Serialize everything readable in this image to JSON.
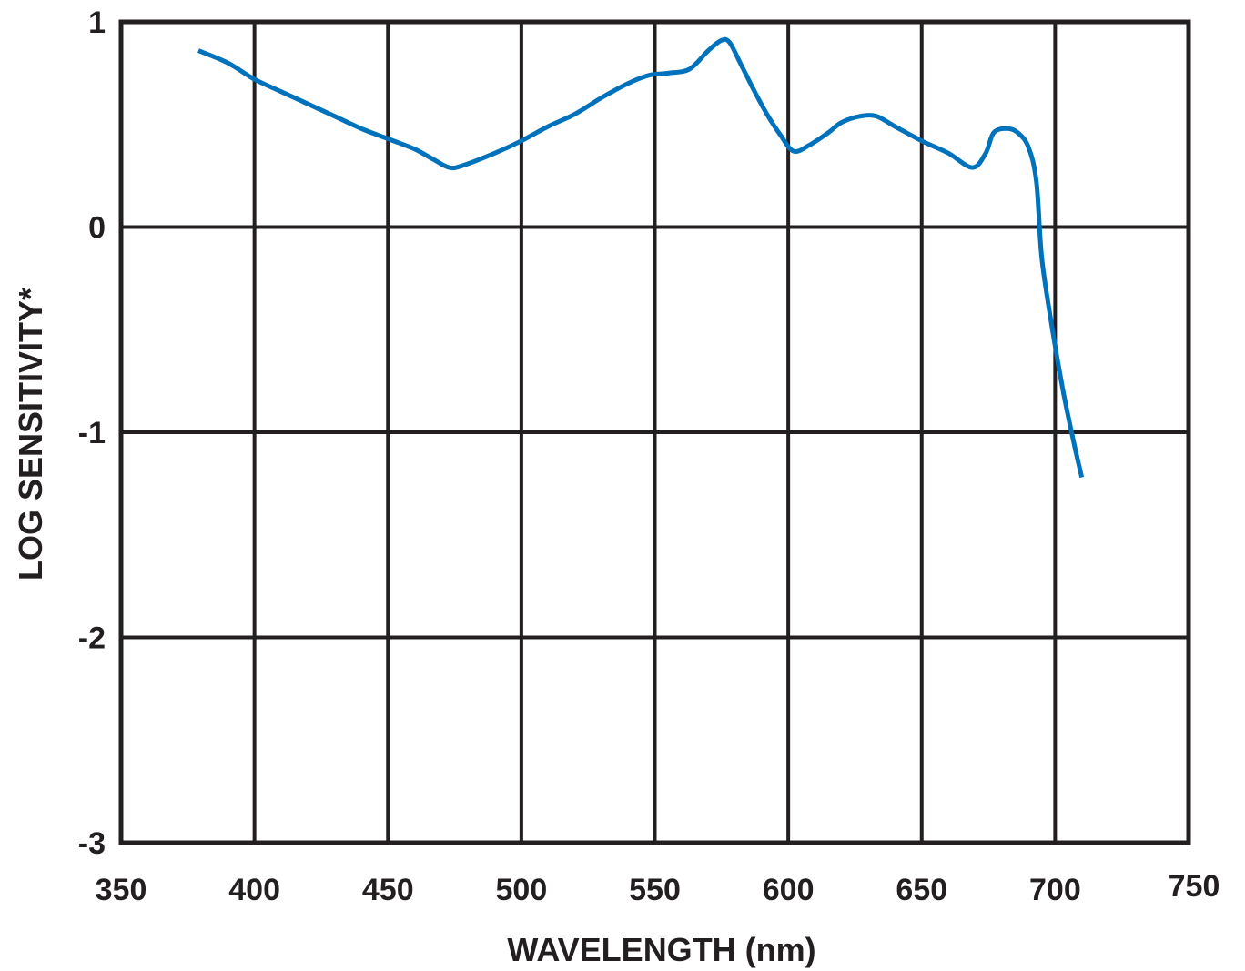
{
  "chart_data": {
    "type": "line",
    "title": "",
    "xlabel": "WAVELENGTH (nm)",
    "ylabel": "LOG SENSITIVITY*",
    "xlim": [
      350,
      750
    ],
    "ylim": [
      -3,
      1
    ],
    "x_ticks": [
      350,
      400,
      450,
      500,
      550,
      600,
      650,
      700,
      750
    ],
    "y_ticks": [
      1,
      0,
      -1,
      -2,
      -3
    ],
    "grid": true,
    "legend": "none",
    "line_color": "#0072bc",
    "grid_color": "#231f20",
    "series": [
      {
        "points": [
          [
            379,
            0.86
          ],
          [
            390,
            0.8
          ],
          [
            400,
            0.72
          ],
          [
            410,
            0.66
          ],
          [
            420,
            0.6
          ],
          [
            430,
            0.54
          ],
          [
            440,
            0.48
          ],
          [
            450,
            0.43
          ],
          [
            460,
            0.38
          ],
          [
            467,
            0.33
          ],
          [
            473,
            0.29
          ],
          [
            478,
            0.3
          ],
          [
            490,
            0.36
          ],
          [
            500,
            0.42
          ],
          [
            510,
            0.49
          ],
          [
            520,
            0.55
          ],
          [
            530,
            0.63
          ],
          [
            540,
            0.7
          ],
          [
            548,
            0.74
          ],
          [
            555,
            0.75
          ],
          [
            563,
            0.77
          ],
          [
            570,
            0.86
          ],
          [
            575,
            0.91
          ],
          [
            578,
            0.9
          ],
          [
            582,
            0.8
          ],
          [
            587,
            0.67
          ],
          [
            592,
            0.55
          ],
          [
            597,
            0.45
          ],
          [
            602,
            0.37
          ],
          [
            608,
            0.4
          ],
          [
            615,
            0.46
          ],
          [
            620,
            0.51
          ],
          [
            627,
            0.54
          ],
          [
            633,
            0.54
          ],
          [
            640,
            0.49
          ],
          [
            650,
            0.42
          ],
          [
            660,
            0.36
          ],
          [
            669,
            0.29
          ],
          [
            674,
            0.36
          ],
          [
            677,
            0.46
          ],
          [
            682,
            0.48
          ],
          [
            686,
            0.46
          ],
          [
            690,
            0.39
          ],
          [
            693,
            0.22
          ],
          [
            695,
            -0.15
          ],
          [
            699,
            -0.5
          ],
          [
            703,
            -0.8
          ],
          [
            707,
            -1.05
          ],
          [
            710,
            -1.22
          ]
        ]
      }
    ]
  }
}
